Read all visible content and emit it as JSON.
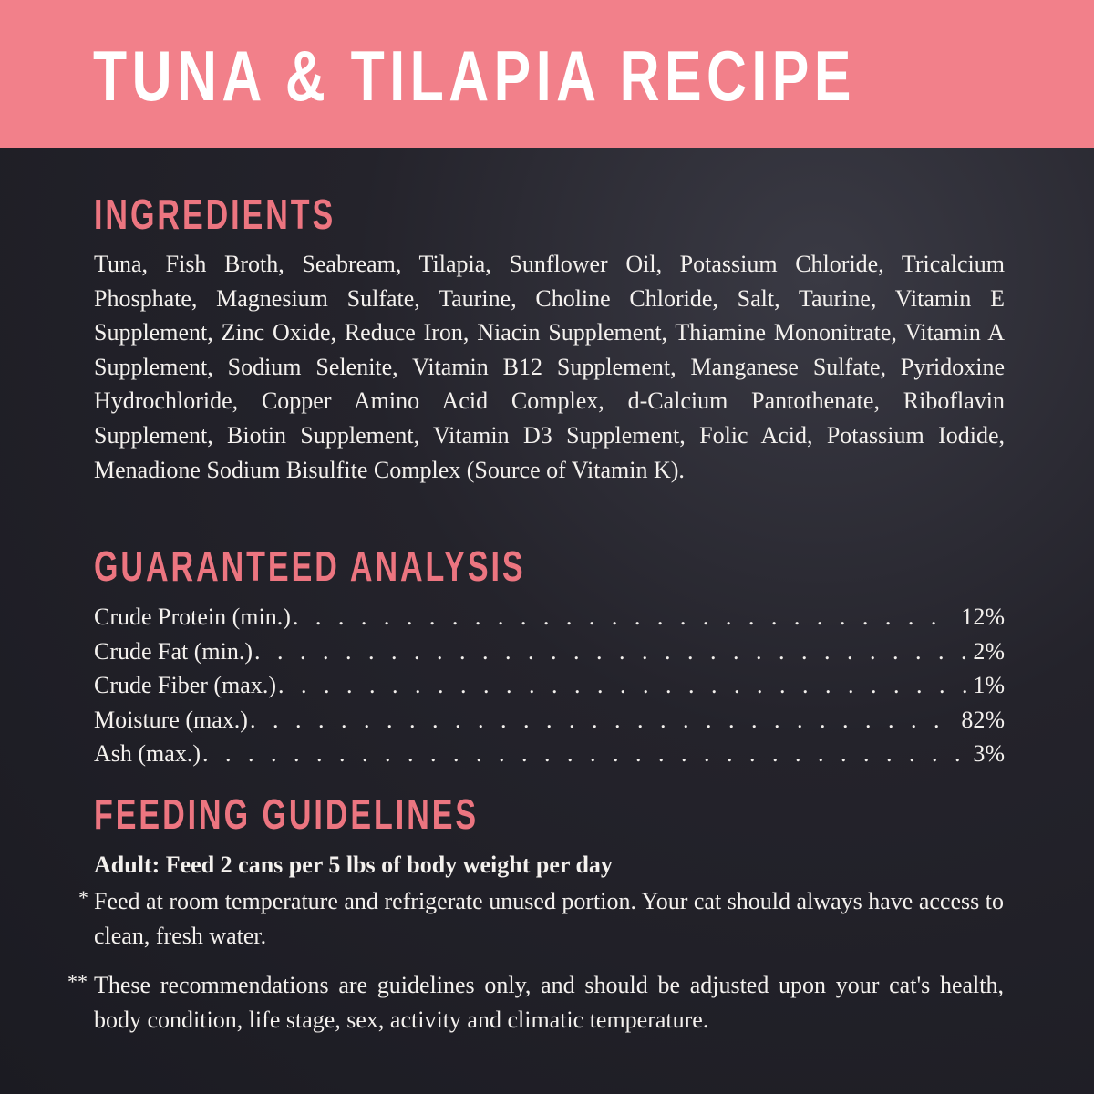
{
  "title": "TUNA & TILAPIA RECIPE",
  "colors": {
    "header": "#f2808a",
    "heading": "#ec7580",
    "background": "#1f1f26"
  },
  "ingredients": {
    "heading": "INGREDIENTS",
    "text": "Tuna, Fish Broth, Seabream, Tilapia, Sunflower Oil, Potassium Chloride, Tricalcium Phosphate, Magnesium Sulfate, Taurine, Choline Chloride, Salt, Taurine, Vitamin E Supplement, Zinc Oxide, Reduce Iron, Niacin Supplement, Thiamine Mononitrate, Vitamin A Supplement, Sodium Selenite, Vitamin B12 Supplement, Manganese Sulfate, Pyridoxine Hydrochloride, Copper Amino Acid Complex, d-Calcium Pantothenate, Riboflavin Supplement, Biotin Supplement, Vitamin D3 Supplement, Folic Acid, Potassium Iodide, Menadione Sodium Bisulfite Complex (Source of Vitamin K)."
  },
  "analysis": {
    "heading": "GUARANTEED ANALYSIS",
    "rows": [
      {
        "label": "Crude Protein (min.)",
        "value": "12%"
      },
      {
        "label": "Crude Fat (min.)",
        "value": "2%"
      },
      {
        "label": "Crude Fiber (max.)",
        "value": "1%"
      },
      {
        "label": "Moisture (max.)",
        "value": "82%"
      },
      {
        "label": "Ash (max.)",
        "value": "3%"
      }
    ]
  },
  "feeding": {
    "heading": "FEEDING GUIDELINES",
    "adult": "Adult: Feed 2 cans per 5 lbs of body weight per day",
    "note1_marker": "*",
    "note1": "Feed at room temperature and refrigerate unused portion. Your cat should always have access to clean, fresh water.",
    "note2_marker": "**",
    "note2": "These recommendations are guidelines only, and should be adjusted upon your cat's health, body condition, life stage, sex, activity and climatic temperature."
  }
}
